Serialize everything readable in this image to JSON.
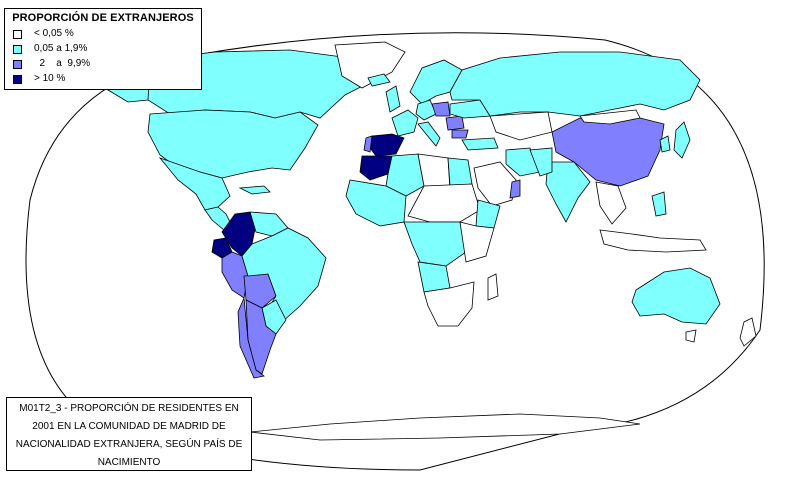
{
  "legend": {
    "title": "PROPORCIÓN DE EXTRANJEROS",
    "items": [
      {
        "label": "< 0,05 %",
        "color": "#ffffff"
      },
      {
        "label": "0,05 a 1,9%",
        "color": "#80ffff"
      },
      {
        "label": "  2    a  9,9%",
        "color": "#8080ff"
      },
      {
        "label": "> 10 %",
        "color": "#000080"
      }
    ]
  },
  "caption": {
    "text": "M01T2_3 - PROPORCIÓN DE RESIDENTES EN 2001 EN LA COMUNIDAD DE MADRID DE NACIONALIDAD EXTRANJERA, SEGÚN PAÍS DE NACIMIENTO"
  },
  "colors": {
    "lt005": "#ffffff",
    "p005_19": "#80ffff",
    "p2_99": "#8080ff",
    "gt10": "#000080",
    "border": "#000000"
  }
}
